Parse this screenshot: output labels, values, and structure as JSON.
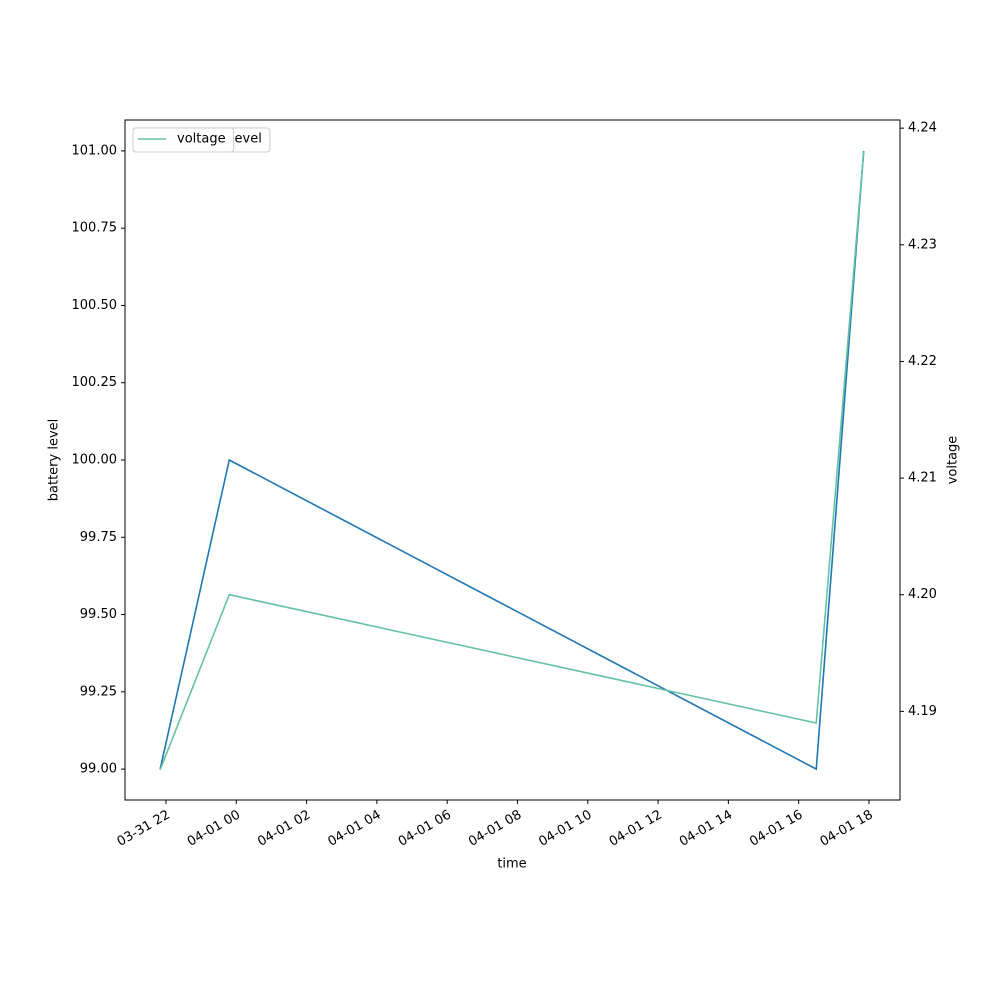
{
  "chart_data": {
    "type": "line",
    "x": [
      "03-31 21:50",
      "03-31 23:48",
      "04-01 16:30",
      "04-01 17:51"
    ],
    "xlim": [
      "03-31 20:50",
      "04-01 18:53"
    ],
    "xticks": [
      "03-31 22",
      "04-01 00",
      "04-01 02",
      "04-01 04",
      "04-01 06",
      "04-01 08",
      "04-01 10",
      "04-01 12",
      "04-01 14",
      "04-01 16",
      "04-01 18"
    ],
    "xlabel": "time",
    "ylabel": "battery level",
    "y2label": "voltage",
    "ylim": [
      98.9,
      101.1
    ],
    "yticks": [
      {
        "value": 99,
        "label": "99.00"
      },
      {
        "value": 99.25,
        "label": "99.25"
      },
      {
        "value": 99.5,
        "label": "99.50"
      },
      {
        "value": 99.75,
        "label": "99.75"
      },
      {
        "value": 100,
        "label": "100.00"
      },
      {
        "value": 100.25,
        "label": "100.25"
      },
      {
        "value": 100.5,
        "label": "100.50"
      },
      {
        "value": 100.75,
        "label": "100.75"
      },
      {
        "value": 101,
        "label": "101.00"
      }
    ],
    "y2lim": [
      4.1824,
      4.2407
    ],
    "y2ticks": [
      4.19,
      {
        "value": 4.2,
        "label": "4.20"
      },
      4.21,
      4.22,
      4.23,
      4.24
    ],
    "legend": "upper left",
    "series": [
      {
        "name": "battery_level",
        "color": "#1f77b4",
        "values": [
          99,
          100,
          99,
          101
        ]
      },
      {
        "name": "voltage",
        "color": "#66c2a5",
        "values": [
          4.185,
          4.2,
          4.189,
          4.238
        ],
        "axis": "y2"
      }
    ]
  }
}
